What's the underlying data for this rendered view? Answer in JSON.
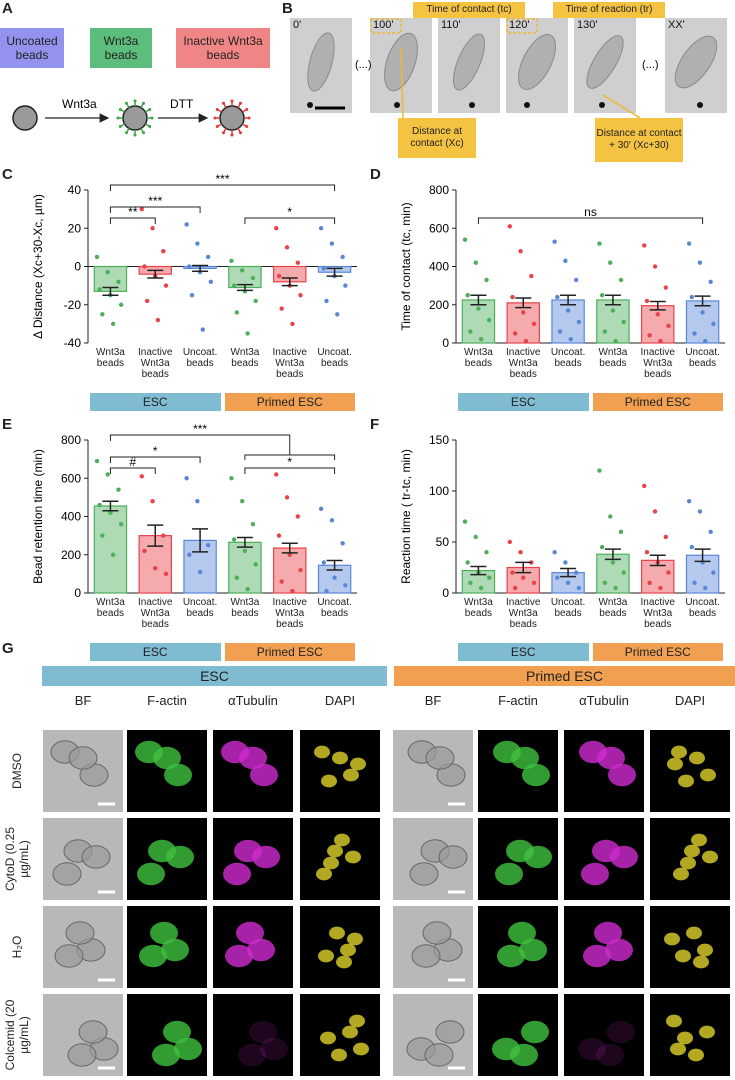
{
  "panel_labels": [
    "A",
    "B",
    "C",
    "D",
    "E",
    "F",
    "G"
  ],
  "panel_a": {
    "bead_types": [
      "Uncoated beads",
      "Wnt3a beads",
      "Inactive Wnt3a beads"
    ],
    "arrows": [
      "Wnt3a",
      "DTT"
    ]
  },
  "panel_b": {
    "frames": [
      "0'",
      "100'",
      "110'",
      "120'",
      "130'",
      "XX'"
    ],
    "ellipsis": "(...)",
    "callouts": [
      "Time of contact (tc)",
      "Time of reaction (tr)",
      "Distance at contact (Xc)",
      "Distance at contact + 30' (Xc+30)"
    ]
  },
  "chart_data": [
    {
      "type": "bar",
      "y_label": "Δ Distance (Xc+30-Xc, µm)",
      "categories": [
        "Wnt3a beads",
        "Inactive Wnt3a beads",
        "Uncoat. beads",
        "Wnt3a beads",
        "Inactive Wnt3a beads",
        "Uncoat. beads"
      ],
      "colors": [
        "#4caf5a",
        "#e8424a",
        "#5a86d6",
        "#4caf5a",
        "#e8424a",
        "#5a86d6"
      ],
      "groups": [
        "ESC",
        "Primed ESC"
      ],
      "group_colors": [
        "#7fbcd2",
        "#f0a050"
      ],
      "values": [
        -13,
        -4,
        -1,
        -11,
        -8,
        -3
      ],
      "errors": [
        2,
        2,
        1.5,
        1.5,
        2,
        2
      ],
      "points": [
        [
          5,
          -3,
          -8,
          -12,
          -15,
          -20,
          -25,
          -30
        ],
        [
          30,
          20,
          8,
          0,
          -5,
          -10,
          -18,
          -28
        ],
        [
          22,
          12,
          5,
          0,
          -3,
          -8,
          -15,
          -33
        ],
        [
          3,
          -2,
          -6,
          -10,
          -13,
          -18,
          -24,
          -35
        ],
        [
          20,
          10,
          2,
          -5,
          -10,
          -15,
          -22,
          -30
        ],
        [
          20,
          12,
          5,
          -1,
          -5,
          -10,
          -18,
          -25
        ]
      ],
      "ylim": [
        -40,
        40
      ],
      "yticks": [
        -40,
        -20,
        0,
        20,
        40
      ],
      "annotations": [
        {
          "label": "**",
          "from": 0,
          "to": 1
        },
        {
          "label": "***",
          "from": 0,
          "to": 2
        },
        {
          "label": "***",
          "from": 0,
          "to": 5
        },
        {
          "label": "*",
          "from": 3,
          "to": 5
        }
      ]
    },
    {
      "type": "bar",
      "y_label": "Time of contact (tc, min)",
      "categories": [
        "Wnt3a beads",
        "Inactive Wnt3a beads",
        "Uncoat. beads",
        "Wnt3a beads",
        "Inactive Wnt3a beads",
        "Uncoat. beads"
      ],
      "colors": [
        "#4caf5a",
        "#e8424a",
        "#5a86d6",
        "#4caf5a",
        "#e8424a",
        "#5a86d6"
      ],
      "groups": [
        "ESC",
        "Primed ESC"
      ],
      "group_colors": [
        "#7fbcd2",
        "#f0a050"
      ],
      "values": [
        225,
        210,
        225,
        225,
        195,
        220
      ],
      "errors": [
        25,
        25,
        25,
        25,
        22,
        25
      ],
      "points": [
        [
          540,
          420,
          330,
          250,
          180,
          120,
          60,
          20
        ],
        [
          610,
          480,
          350,
          240,
          160,
          100,
          50,
          10
        ],
        [
          530,
          430,
          330,
          240,
          170,
          110,
          60,
          20
        ],
        [
          520,
          420,
          330,
          250,
          170,
          110,
          60,
          10
        ],
        [
          510,
          400,
          290,
          220,
          150,
          90,
          40,
          10
        ],
        [
          520,
          420,
          320,
          240,
          160,
          100,
          50,
          10
        ]
      ],
      "ylim": [
        0,
        800
      ],
      "yticks": [
        0,
        200,
        400,
        600,
        800
      ],
      "annotations": [
        {
          "label": "ns",
          "from": 0,
          "to": 5
        }
      ]
    },
    {
      "type": "bar",
      "y_label": "Bead retention time (min)",
      "categories": [
        "Wnt3a beads",
        "Inactive Wnt3a beads",
        "Uncoat. beads",
        "Wnt3a beads",
        "Inactive Wnt3a beads",
        "Uncoat. beads"
      ],
      "colors": [
        "#4caf5a",
        "#e8424a",
        "#5a86d6",
        "#4caf5a",
        "#e8424a",
        "#5a86d6"
      ],
      "groups": [
        "ESC",
        "Primed ESC"
      ],
      "group_colors": [
        "#7fbcd2",
        "#f0a050"
      ],
      "values": [
        455,
        300,
        275,
        265,
        235,
        145
      ],
      "errors": [
        25,
        55,
        60,
        25,
        25,
        25
      ],
      "points": [
        [
          690,
          620,
          540,
          460,
          420,
          360,
          300,
          200
        ],
        [
          610,
          480,
          300,
          220,
          130,
          100
        ],
        [
          600,
          480,
          250,
          200,
          110
        ],
        [
          600,
          480,
          360,
          280,
          220,
          150,
          80,
          20
        ],
        [
          620,
          500,
          400,
          300,
          200,
          120,
          60,
          10
        ],
        [
          440,
          380,
          260,
          160,
          80,
          40,
          10
        ]
      ],
      "ylim": [
        0,
        800
      ],
      "yticks": [
        0,
        200,
        400,
        600,
        800
      ],
      "annotations": [
        {
          "label": "#",
          "from": 0,
          "to": 1
        },
        {
          "label": "*",
          "from": 0,
          "to": 2
        },
        {
          "label": "***",
          "from": 0,
          "to": [
            3,
            5
          ]
        },
        {
          "label": "*",
          "from": 3,
          "to": 5
        }
      ]
    },
    {
      "type": "bar",
      "y_label": "Reaction time ( tr-tc, min)",
      "categories": [
        "Wnt3a beads",
        "Inactive Wnt3a beads",
        "Uncoat. beads",
        "Wnt3a beads",
        "Inactive Wnt3a beads",
        "Uncoat. beads"
      ],
      "colors": [
        "#4caf5a",
        "#e8424a",
        "#5a86d6",
        "#4caf5a",
        "#e8424a",
        "#5a86d6"
      ],
      "groups": [
        "ESC",
        "Primed ESC"
      ],
      "group_colors": [
        "#7fbcd2",
        "#f0a050"
      ],
      "values": [
        22,
        25,
        20,
        38,
        32,
        37
      ],
      "errors": [
        4,
        5,
        4,
        5,
        5,
        6
      ],
      "points": [
        [
          70,
          55,
          40,
          30,
          20,
          15,
          10,
          5
        ],
        [
          50,
          40,
          30,
          20,
          15,
          10,
          5
        ],
        [
          40,
          30,
          20,
          15,
          10,
          5
        ],
        [
          120,
          75,
          60,
          45,
          30,
          20,
          10,
          5
        ],
        [
          105,
          80,
          55,
          40,
          30,
          20,
          10,
          5
        ],
        [
          90,
          80,
          60,
          45,
          30,
          20,
          10,
          5
        ]
      ],
      "ylim": [
        0,
        150
      ],
      "yticks": [
        0,
        50,
        100,
        150
      ],
      "annotations": []
    }
  ],
  "panel_g": {
    "groups": [
      "ESC",
      "Primed ESC"
    ],
    "columns": [
      "BF",
      "F-actin",
      "αTubulin",
      "DAPI"
    ],
    "rows": [
      "DMSO",
      "CytoD (0.25 µg/mL)",
      "H₂O",
      "Colcemid (20 µg/mL)"
    ]
  }
}
